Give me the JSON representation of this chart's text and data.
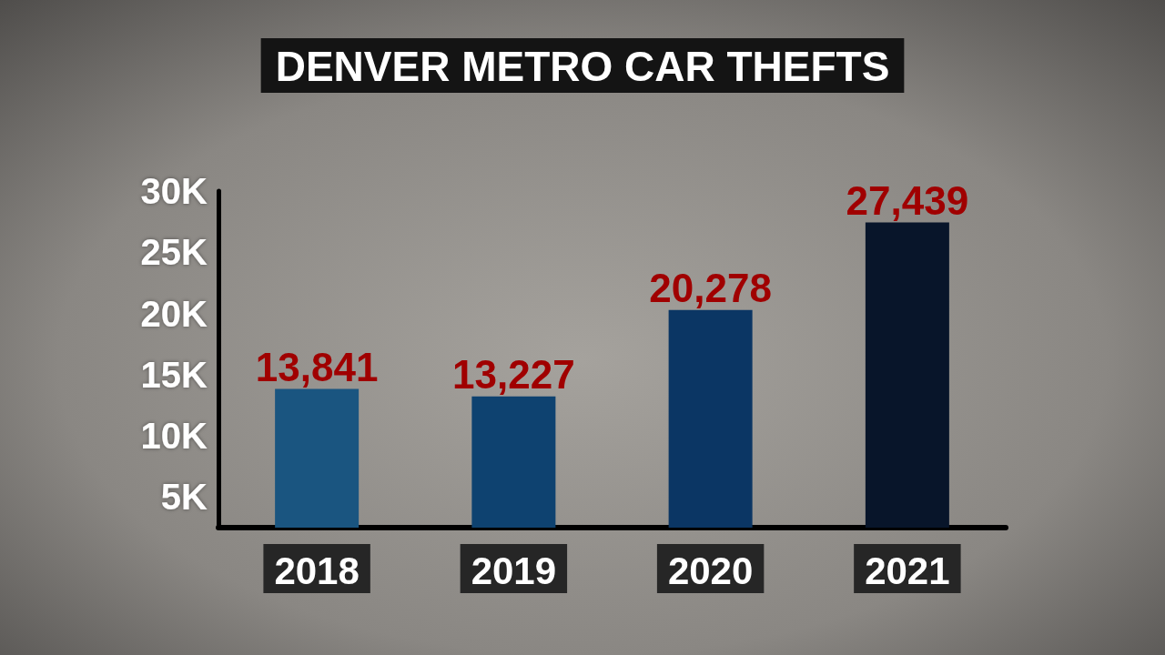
{
  "chart_data": {
    "type": "bar",
    "title": "DENVER METRO CAR THEFTS",
    "categories": [
      "2018",
      "2019",
      "2020",
      "2021"
    ],
    "values": [
      13841,
      13227,
      20278,
      27439
    ],
    "colors": [
      "#1a5580",
      "#0e4270",
      "#0b3664",
      "#08152a"
    ],
    "value_labels": [
      "13,841",
      "13,227",
      "20,278",
      "27,439"
    ],
    "ylim": [
      2500,
      30000
    ],
    "yticks": [
      {
        "value": 5000,
        "label": "5K"
      },
      {
        "value": 10000,
        "label": "10K"
      },
      {
        "value": 15000,
        "label": "15K"
      },
      {
        "value": 20000,
        "label": "20K"
      },
      {
        "value": 25000,
        "label": "25K"
      },
      {
        "value": 30000,
        "label": "30K"
      }
    ]
  }
}
